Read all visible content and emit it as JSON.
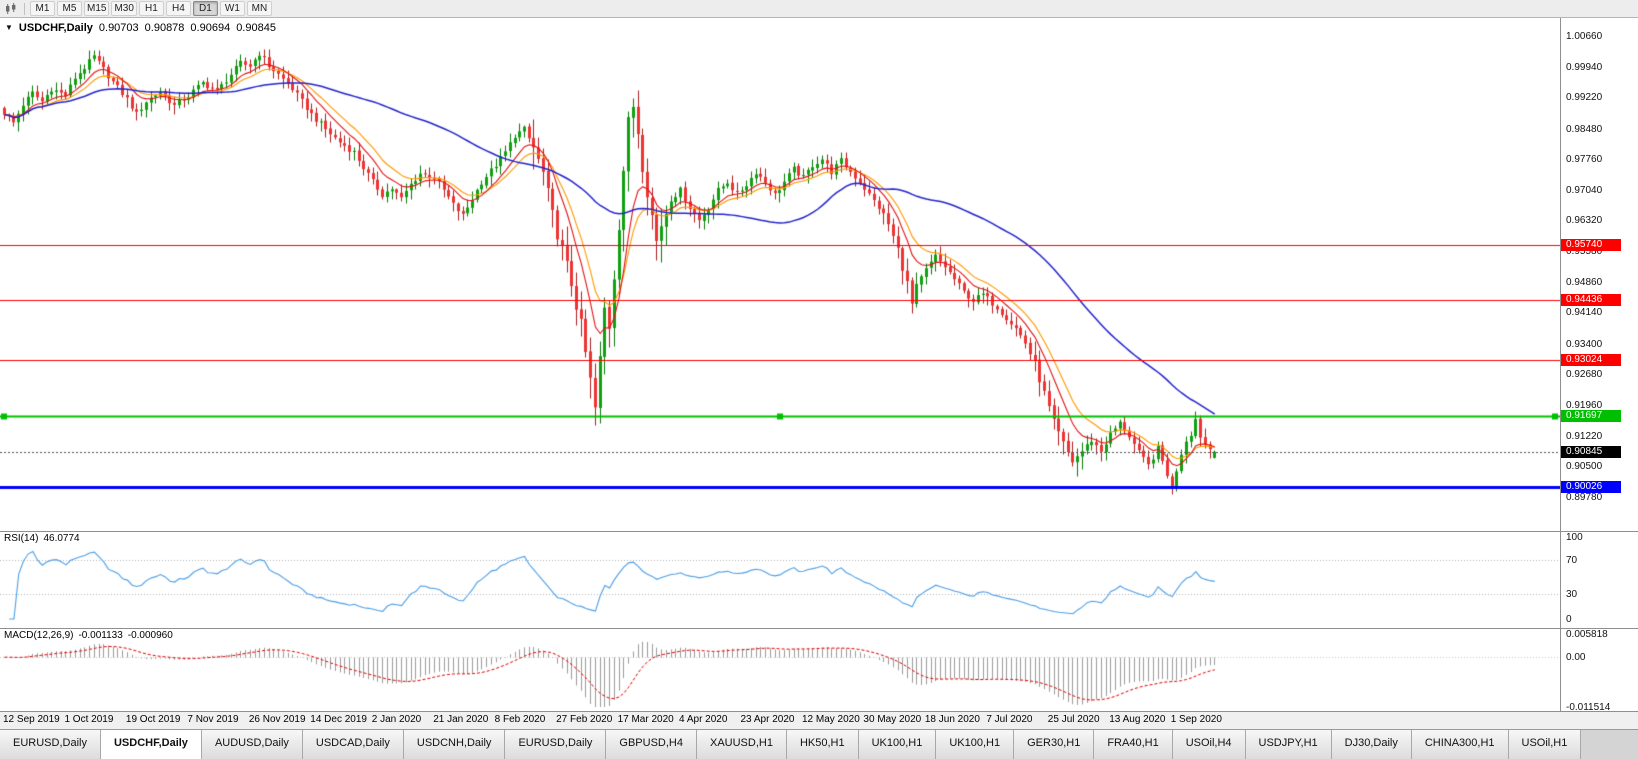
{
  "icons": {
    "one_click_trading": "▼"
  },
  "toolbar": {
    "timeframes": [
      "M1",
      "M5",
      "M15",
      "M30",
      "H1",
      "H4",
      "D1",
      "W1",
      "MN"
    ],
    "active_timeframe": "D1"
  },
  "chart": {
    "title": "USDCHF,Daily",
    "ohlc": {
      "open": "0.90703",
      "high": "0.90878",
      "low": "0.90694",
      "close": "0.90845"
    }
  },
  "indicators": {
    "rsi": {
      "name": "RSI(14)",
      "value": "46.0774"
    },
    "macd": {
      "name": "MACD(12,26,9)",
      "main_value": "-0.001133",
      "signal_value": "-0.000960"
    }
  },
  "tabs": {
    "active_index": 1,
    "labels": [
      "EURUSD,Daily",
      "USDCHF,Daily",
      "AUDUSD,Daily",
      "USDCAD,Daily",
      "USDCNH,Daily",
      "EURUSD,Daily",
      "GBPUSD,H4",
      "XAUUSD,H1",
      "HK50,H1",
      "UK100,H1",
      "UK100,H1",
      "GER30,H1",
      "FRA40,H1",
      "USOil,H4",
      "USDJPY,H1",
      "DJ30,Daily",
      "CHINA300,H1",
      "USOil,H1"
    ]
  },
  "chart_data": {
    "type": "candlestick",
    "symbol": "USDCHF",
    "timeframe": "Daily",
    "bars": 257,
    "bars_per_tick": 13,
    "x_tick_labels": [
      "12 Sep 2019",
      "1 Oct 2019",
      "19 Oct 2019",
      "7 Nov 2019",
      "26 Nov 2019",
      "14 Dec 2019",
      "2 Jan 2020",
      "21 Jan 2020",
      "8 Feb 2020",
      "27 Feb 2020",
      "17 Mar 2020",
      "4 Apr 2020",
      "23 Apr 2020",
      "12 May 2020",
      "30 May 2020",
      "18 Jun 2020",
      "7 Jul 2020",
      "25 Jul 2020",
      "13 Aug 2020",
      "1 Sep 2020"
    ],
    "y_tick_labels": [
      "1.00660",
      "0.99940",
      "0.99220",
      "0.98480",
      "0.97760",
      "0.97040",
      "0.96320",
      "0.95580",
      "0.94860",
      "0.94140",
      "0.93400",
      "0.92680",
      "0.91960",
      "0.91220",
      "0.90500",
      "0.89780"
    ],
    "y_range": [
      0.8945,
      1.0095
    ],
    "current_price": "0.90845",
    "last_ohlc": [
      0.90703,
      0.90878,
      0.90694,
      0.90845
    ],
    "horizontal_levels": [
      {
        "price": 0.9574,
        "label": "0.95740",
        "color": "#FF0000",
        "width": 1,
        "handles": false
      },
      {
        "price": 0.94436,
        "label": "0.94436",
        "color": "#FF0000",
        "width": 1,
        "handles": false
      },
      {
        "price": 0.93024,
        "label": "0.93024",
        "color": "#FF0000",
        "width": 1,
        "handles": false
      },
      {
        "price": 0.91697,
        "label": "0.91697",
        "color": "#00BF00",
        "width": 2,
        "handles": true
      },
      {
        "price": 0.90026,
        "label": "0.90026",
        "color": "#0000FF",
        "width": 3,
        "handles": false
      }
    ],
    "ma": [
      {
        "type": "ema",
        "period": 13,
        "color": "#FF9900"
      },
      {
        "type": "ema",
        "period": 8,
        "color": "#E01414"
      },
      {
        "type": "sma",
        "period": 50,
        "color": "#2424CC"
      }
    ],
    "rsi": {
      "period": 14,
      "levels": [
        100,
        70,
        30,
        0
      ],
      "last": 46.0774,
      "color": "#4D9FE8"
    },
    "macd": {
      "fast": 12,
      "slow": 26,
      "signal": 9,
      "y_ticks": [
        "0.005818",
        "0.00",
        "-0.011514"
      ],
      "last_main": -0.001133,
      "last_signal": -0.00096,
      "hist_color": "#9B9B9B",
      "signal_color": "#E00000"
    },
    "colors": {
      "up_body": "#10A010",
      "up_wick": "#0A7A0A",
      "down_body": "#EE3333",
      "down_wick": "#B02020",
      "current_line": "#555555"
    },
    "close_anchors": [
      [
        0,
        0.9885
      ],
      [
        2,
        0.9862
      ],
      [
        4,
        0.9905
      ],
      [
        6,
        0.9932
      ],
      [
        8,
        0.9912
      ],
      [
        10,
        0.9942
      ],
      [
        13,
        0.9926
      ],
      [
        15,
        0.9968
      ],
      [
        17,
        0.9992
      ],
      [
        19,
        1.0018
      ],
      [
        21,
        0.9988
      ],
      [
        23,
        0.9958
      ],
      [
        26,
        0.9918
      ],
      [
        28,
        0.9882
      ],
      [
        30,
        0.9912
      ],
      [
        33,
        0.9936
      ],
      [
        36,
        0.9902
      ],
      [
        39,
        0.9926
      ],
      [
        42,
        0.9956
      ],
      [
        45,
        0.9936
      ],
      [
        48,
        0.9976
      ],
      [
        50,
        1.0002
      ],
      [
        52,
        0.9996
      ],
      [
        54,
        1.0026
      ],
      [
        56,
        0.9996
      ],
      [
        58,
        0.9976
      ],
      [
        61,
        0.9942
      ],
      [
        63,
        0.9912
      ],
      [
        65,
        0.9882
      ],
      [
        68,
        0.9846
      ],
      [
        71,
        0.9816
      ],
      [
        74,
        0.9792
      ],
      [
        76,
        0.9756
      ],
      [
        78,
        0.9722
      ],
      [
        80,
        0.9692
      ],
      [
        82,
        0.9706
      ],
      [
        84,
        0.9682
      ],
      [
        86,
        0.9716
      ],
      [
        88,
        0.9742
      ],
      [
        91,
        0.9732
      ],
      [
        93,
        0.9702
      ],
      [
        95,
        0.9668
      ],
      [
        97,
        0.9642
      ],
      [
        99,
        0.9682
      ],
      [
        101,
        0.9722
      ],
      [
        104,
        0.9762
      ],
      [
        106,
        0.9792
      ],
      [
        108,
        0.9832
      ],
      [
        110,
        0.9846
      ],
      [
        112,
        0.9802
      ],
      [
        114,
        0.9742
      ],
      [
        116,
        0.9642
      ],
      [
        118,
        0.9562
      ],
      [
        120,
        0.9482
      ],
      [
        122,
        0.9382
      ],
      [
        124,
        0.9252
      ],
      [
        125,
        0.9186
      ],
      [
        126,
        0.9302
      ],
      [
        127,
        0.9422
      ],
      [
        128,
        0.9382
      ],
      [
        129,
        0.9502
      ],
      [
        130,
        0.9622
      ],
      [
        131,
        0.9752
      ],
      [
        132,
        0.9862
      ],
      [
        133,
        0.9902
      ],
      [
        134,
        0.9842
      ],
      [
        135,
        0.9762
      ],
      [
        136,
        0.9702
      ],
      [
        137,
        0.9642
      ],
      [
        138,
        0.9582
      ],
      [
        139,
        0.9622
      ],
      [
        141,
        0.9682
      ],
      [
        143,
        0.9702
      ],
      [
        145,
        0.9662
      ],
      [
        147,
        0.9632
      ],
      [
        149,
        0.9662
      ],
      [
        151,
        0.9702
      ],
      [
        153,
        0.9722
      ],
      [
        155,
        0.9692
      ],
      [
        157,
        0.9716
      ],
      [
        159,
        0.9746
      ],
      [
        161,
        0.9722
      ],
      [
        163,
        0.9692
      ],
      [
        165,
        0.9722
      ],
      [
        167,
        0.9752
      ],
      [
        169,
        0.9732
      ],
      [
        171,
        0.9762
      ],
      [
        173,
        0.9776
      ],
      [
        175,
        0.9746
      ],
      [
        177,
        0.9772
      ],
      [
        179,
        0.9746
      ],
      [
        181,
        0.9722
      ],
      [
        183,
        0.9692
      ],
      [
        185,
        0.9662
      ],
      [
        187,
        0.9622
      ],
      [
        189,
        0.9562
      ],
      [
        191,
        0.9482
      ],
      [
        192,
        0.9432
      ],
      [
        193,
        0.9472
      ],
      [
        195,
        0.9512
      ],
      [
        197,
        0.9546
      ],
      [
        199,
        0.9522
      ],
      [
        201,
        0.9492
      ],
      [
        203,
        0.9462
      ],
      [
        205,
        0.9442
      ],
      [
        207,
        0.9456
      ],
      [
        210,
        0.9426
      ],
      [
        212,
        0.9402
      ],
      [
        214,
        0.9376
      ],
      [
        216,
        0.9342
      ],
      [
        218,
        0.9292
      ],
      [
        220,
        0.9222
      ],
      [
        222,
        0.9152
      ],
      [
        224,
        0.9102
      ],
      [
        226,
        0.9062
      ],
      [
        228,
        0.9086
      ],
      [
        230,
        0.9112
      ],
      [
        232,
        0.9086
      ],
      [
        234,
        0.9126
      ],
      [
        236,
        0.9152
      ],
      [
        238,
        0.9122
      ],
      [
        240,
        0.9082
      ],
      [
        242,
        0.9052
      ],
      [
        244,
        0.9092
      ],
      [
        246,
        0.9032
      ],
      [
        247,
        0.8998
      ],
      [
        248,
        0.9042
      ],
      [
        249,
        0.9082
      ],
      [
        250,
        0.9112
      ],
      [
        251,
        0.9128
      ],
      [
        252,
        0.9162
      ],
      [
        253,
        0.9122
      ],
      [
        254,
        0.9102
      ],
      [
        255,
        0.9092
      ],
      [
        256,
        0.90845
      ]
    ]
  }
}
